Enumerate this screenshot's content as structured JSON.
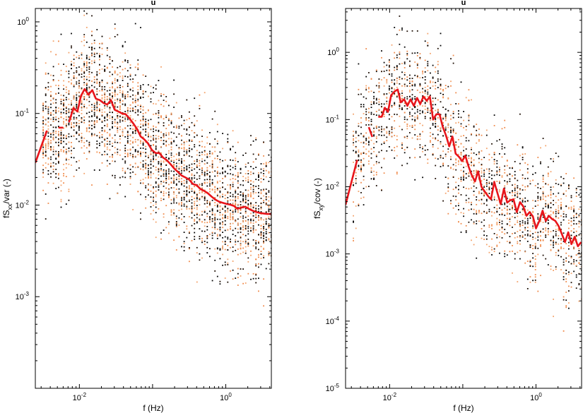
{
  "chart_data": [
    {
      "type": "scatter",
      "title": "u",
      "xlabel": "f (Hz)",
      "ylabel": {
        "base": "fS",
        "sub": "xx",
        "rest": "/var (-)"
      },
      "xscale": "log",
      "yscale": "log",
      "xlim": [
        0.0025,
        4.2
      ],
      "ylim": [
        0.0001,
        1.4
      ],
      "xticks": [
        {
          "value": 0.01,
          "base": "10",
          "exp": "-2"
        },
        {
          "value": 1,
          "base": "10",
          "exp": "0"
        }
      ],
      "yticks": [
        {
          "value": 0.001,
          "base": "10",
          "exp": "-3"
        },
        {
          "value": 0.01,
          "base": "10",
          "exp": "-2"
        },
        {
          "value": 0.1,
          "base": "10",
          "exp": "-1"
        },
        {
          "value": 1,
          "base": "10",
          "exp": "0"
        }
      ],
      "grid": false,
      "series": [
        {
          "kind": "line",
          "color": "#e8151b",
          "segments": [
            [
              [
                0.0025,
                0.029
              ],
              [
                0.0036,
                0.065
              ]
            ],
            [
              [
                0.0052,
                0.07
              ],
              [
                0.006,
                0.07
              ]
            ],
            [
              [
                0.0072,
                0.08
              ],
              [
                0.0083,
                0.115
              ],
              [
                0.0094,
                0.105
              ],
              [
                0.0105,
                0.155
              ],
              [
                0.0118,
                0.185
              ],
              [
                0.0133,
                0.16
              ],
              [
                0.015,
                0.18
              ],
              [
                0.0168,
                0.145
              ],
              [
                0.019,
                0.14
              ],
              [
                0.0213,
                0.13
              ],
              [
                0.024,
                0.125
              ],
              [
                0.027,
                0.14
              ],
              [
                0.0303,
                0.11
              ],
              [
                0.034,
                0.105
              ],
              [
                0.0383,
                0.1
              ],
              [
                0.043,
                0.098
              ],
              [
                0.0484,
                0.088
              ],
              [
                0.0544,
                0.078
              ],
              [
                0.0612,
                0.068
              ],
              [
                0.0688,
                0.056
              ],
              [
                0.0774,
                0.052
              ],
              [
                0.087,
                0.047
              ],
              [
                0.0979,
                0.04
              ],
              [
                0.11,
                0.037
              ],
              [
                0.124,
                0.037
              ],
              [
                0.139,
                0.033
              ],
              [
                0.156,
                0.031
              ],
              [
                0.176,
                0.028
              ],
              [
                0.198,
                0.025
              ],
              [
                0.222,
                0.023
              ],
              [
                0.25,
                0.021
              ],
              [
                0.281,
                0.02
              ],
              [
                0.316,
                0.019
              ],
              [
                0.355,
                0.017
              ],
              [
                0.4,
                0.0165
              ],
              [
                0.45,
                0.015
              ],
              [
                0.505,
                0.0143
              ],
              [
                0.568,
                0.0135
              ],
              [
                0.639,
                0.0124
              ],
              [
                0.718,
                0.0115
              ],
              [
                0.808,
                0.0109
              ],
              [
                0.908,
                0.0106
              ],
              [
                1.02,
                0.0103
              ],
              [
                1.15,
                0.0101
              ],
              [
                1.29,
                0.0098
              ],
              [
                1.45,
                0.0091
              ],
              [
                1.63,
                0.0094
              ],
              [
                1.84,
                0.0096
              ],
              [
                2.06,
                0.0091
              ],
              [
                2.32,
                0.0087
              ],
              [
                2.61,
                0.0084
              ],
              [
                2.94,
                0.0082
              ],
              [
                3.3,
                0.0081
              ],
              [
                3.71,
                0.008
              ],
              [
                4.2,
                0.008
              ]
            ]
          ]
        }
      ]
    },
    {
      "type": "scatter",
      "title": "u",
      "xlabel": "f (Hz)",
      "ylabel": {
        "base": "fS",
        "sub": "xy",
        "rest": "/cov (-)"
      },
      "xscale": "log",
      "yscale": "log",
      "xlim": [
        0.0025,
        4.2
      ],
      "ylim": [
        1e-05,
        4.5
      ],
      "xticks": [
        {
          "value": 0.01,
          "base": "10",
          "exp": "-2"
        },
        {
          "value": 1,
          "base": "10",
          "exp": "0"
        }
      ],
      "yticks": [
        {
          "value": 1e-05,
          "base": "10",
          "exp": "-5"
        },
        {
          "value": 0.0001,
          "base": "10",
          "exp": "-4"
        },
        {
          "value": 0.001,
          "base": "10",
          "exp": "-3"
        },
        {
          "value": 0.01,
          "base": "10",
          "exp": "-2"
        },
        {
          "value": 0.1,
          "base": "10",
          "exp": "-1"
        },
        {
          "value": 1,
          "base": "10",
          "exp": "0"
        }
      ],
      "grid": false,
      "series": [
        {
          "kind": "line",
          "color": "#e8151b",
          "segments": [
            [
              [
                0.0025,
                0.0054
              ],
              [
                0.0036,
                0.025
              ]
            ],
            [
              [
                0.0052,
                0.077
              ],
              [
                0.0058,
                0.055
              ]
            ],
            [
              [
                0.007,
                0.11
              ],
              [
                0.0078,
                0.11
              ],
              [
                0.0086,
                0.15
              ],
              [
                0.0095,
                0.13
              ],
              [
                0.0105,
                0.23
              ],
              [
                0.0116,
                0.26
              ],
              [
                0.0129,
                0.28
              ],
              [
                0.0142,
                0.18
              ],
              [
                0.0158,
                0.2
              ],
              [
                0.0175,
                0.16
              ],
              [
                0.0193,
                0.2
              ],
              [
                0.0214,
                0.16
              ],
              [
                0.0237,
                0.21
              ],
              [
                0.0262,
                0.17
              ],
              [
                0.029,
                0.22
              ],
              [
                0.0321,
                0.19
              ],
              [
                0.0355,
                0.22
              ],
              [
                0.0393,
                0.1
              ],
              [
                0.0435,
                0.12
              ],
              [
                0.0481,
                0.12
              ],
              [
                0.0532,
                0.078
              ],
              [
                0.0589,
                0.058
              ],
              [
                0.0652,
                0.04
              ],
              [
                0.0721,
                0.056
              ],
              [
                0.0798,
                0.031
              ],
              [
                0.0883,
                0.028
              ],
              [
                0.0977,
                0.024
              ],
              [
                0.108,
                0.029
              ],
              [
                0.12,
                0.02
              ],
              [
                0.132,
                0.015
              ],
              [
                0.147,
                0.012
              ],
              [
                0.162,
                0.017
              ],
              [
                0.18,
                0.01
              ],
              [
                0.199,
                0.0085
              ],
              [
                0.22,
                0.0073
              ],
              [
                0.243,
                0.0065
              ],
              [
                0.269,
                0.0118
              ],
              [
                0.298,
                0.008
              ],
              [
                0.33,
                0.0055
              ],
              [
                0.365,
                0.0094
              ],
              [
                0.404,
                0.0058
              ],
              [
                0.447,
                0.0063
              ],
              [
                0.494,
                0.0065
              ],
              [
                0.547,
                0.0042
              ],
              [
                0.605,
                0.0059
              ],
              [
                0.67,
                0.0051
              ],
              [
                0.741,
                0.0037
              ],
              [
                0.82,
                0.0042
              ],
              [
                0.907,
                0.0036
              ],
              [
                1.0,
                0.0024
              ],
              [
                1.11,
                0.0031
              ],
              [
                1.23,
                0.0044
              ],
              [
                1.36,
                0.0031
              ],
              [
                1.5,
                0.0037
              ],
              [
                1.66,
                0.0033
              ],
              [
                1.84,
                0.0031
              ],
              [
                2.04,
                0.0026
              ],
              [
                2.25,
                0.002
              ],
              [
                2.49,
                0.0015
              ],
              [
                2.76,
                0.0021
              ],
              [
                3.05,
                0.0014
              ],
              [
                3.38,
                0.0018
              ],
              [
                3.74,
                0.0013
              ],
              [
                4.14,
                0.0015
              ]
            ]
          ]
        }
      ]
    }
  ],
  "scatter_style": {
    "colors": [
      "#1a0a00",
      "#f08a4b",
      "#000000",
      "#f4a36b"
    ]
  }
}
